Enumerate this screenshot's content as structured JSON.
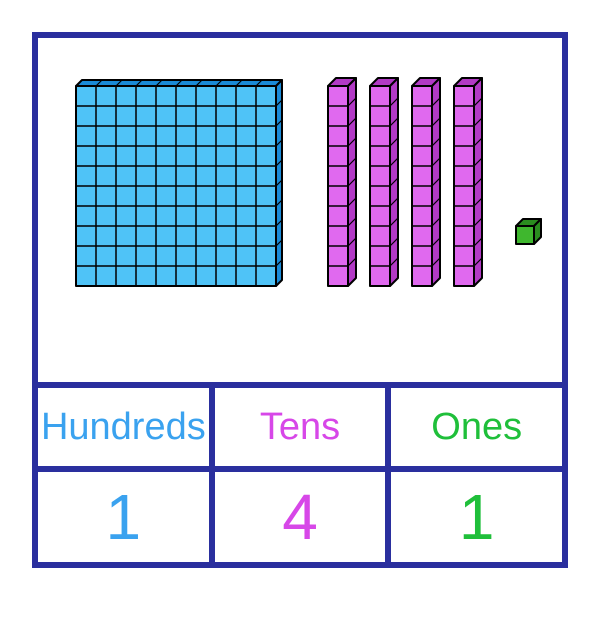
{
  "border_color": "#2a2f9e",
  "hundreds": {
    "label": "Hundreds",
    "value": "1",
    "color": "#3aa2ef",
    "fill": "#4fc3f7",
    "dark": "#1a8bd8",
    "stroke": "#000000",
    "count": 1
  },
  "tens": {
    "label": "Tens",
    "value": "4",
    "color": "#d747e8",
    "fill": "#e069ef",
    "dark": "#b23ac5",
    "stroke": "#000000",
    "count": 4
  },
  "ones": {
    "label": "Ones",
    "value": "1",
    "color": "#1fbf3a",
    "fill": "#3fb72e",
    "dark": "#2a8d1f",
    "stroke": "#000000",
    "count": 1
  },
  "label_fontsize": 38,
  "value_fontsize": 64
}
